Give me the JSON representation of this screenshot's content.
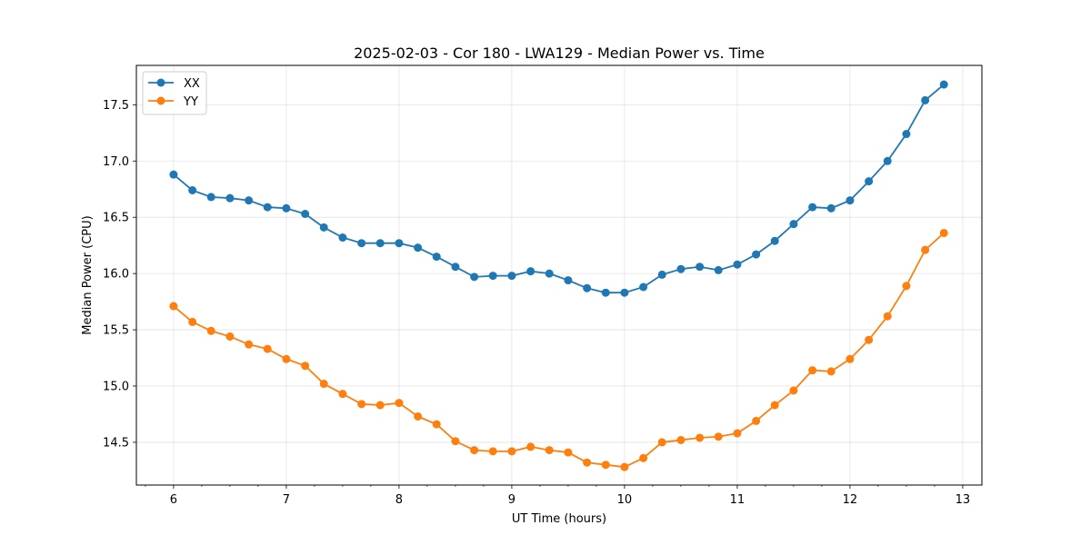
{
  "chart_data": {
    "type": "line",
    "title": "2025-02-03 - Cor 180 - LWA129 - Median Power vs. Time",
    "xlabel": "UT Time (hours)",
    "ylabel": "Median Power (CPU)",
    "xlim": [
      5.67,
      13.17
    ],
    "ylim": [
      14.12,
      17.85
    ],
    "xticks": [
      6,
      7,
      8,
      9,
      10,
      11,
      12,
      13
    ],
    "yticks": [
      14.5,
      15.0,
      15.5,
      16.0,
      16.5,
      17.0,
      17.5
    ],
    "xtick_labels": [
      "6",
      "7",
      "8",
      "9",
      "10",
      "11",
      "12",
      "13"
    ],
    "ytick_labels": [
      "14.5",
      "15.0",
      "15.5",
      "16.0",
      "16.5",
      "17.0",
      "17.5"
    ],
    "grid": true,
    "legend_position": "top-left",
    "x": [
      6.0,
      6.167,
      6.333,
      6.5,
      6.667,
      6.833,
      7.0,
      7.167,
      7.333,
      7.5,
      7.667,
      7.833,
      8.0,
      8.167,
      8.333,
      8.5,
      8.667,
      8.833,
      9.0,
      9.167,
      9.333,
      9.5,
      9.667,
      9.833,
      10.0,
      10.167,
      10.333,
      10.5,
      10.667,
      10.833,
      11.0,
      11.167,
      11.333,
      11.5,
      11.667,
      11.833,
      12.0,
      12.167,
      12.333,
      12.5,
      12.667,
      12.833
    ],
    "series": [
      {
        "name": "XX",
        "color": "#1f77b4",
        "values": [
          16.88,
          16.74,
          16.68,
          16.67,
          16.65,
          16.59,
          16.58,
          16.53,
          16.41,
          16.32,
          16.27,
          16.27,
          16.27,
          16.23,
          16.15,
          16.06,
          15.97,
          15.98,
          15.98,
          16.02,
          16.0,
          15.94,
          15.87,
          15.83,
          15.83,
          15.88,
          15.99,
          16.04,
          16.06,
          16.03,
          16.08,
          16.17,
          16.29,
          16.44,
          16.59,
          16.58,
          16.65,
          16.82,
          17.0,
          17.24,
          17.54,
          17.68
        ]
      },
      {
        "name": "YY",
        "color": "#ff7f0e",
        "values": [
          15.71,
          15.57,
          15.49,
          15.44,
          15.37,
          15.33,
          15.24,
          15.18,
          15.02,
          14.93,
          14.84,
          14.83,
          14.85,
          14.73,
          14.66,
          14.51,
          14.43,
          14.42,
          14.42,
          14.46,
          14.43,
          14.41,
          14.32,
          14.3,
          14.28,
          14.36,
          14.5,
          14.52,
          14.54,
          14.55,
          14.58,
          14.69,
          14.83,
          14.96,
          15.14,
          15.13,
          15.24,
          15.41,
          15.62,
          15.89,
          16.21,
          16.36
        ]
      }
    ]
  }
}
